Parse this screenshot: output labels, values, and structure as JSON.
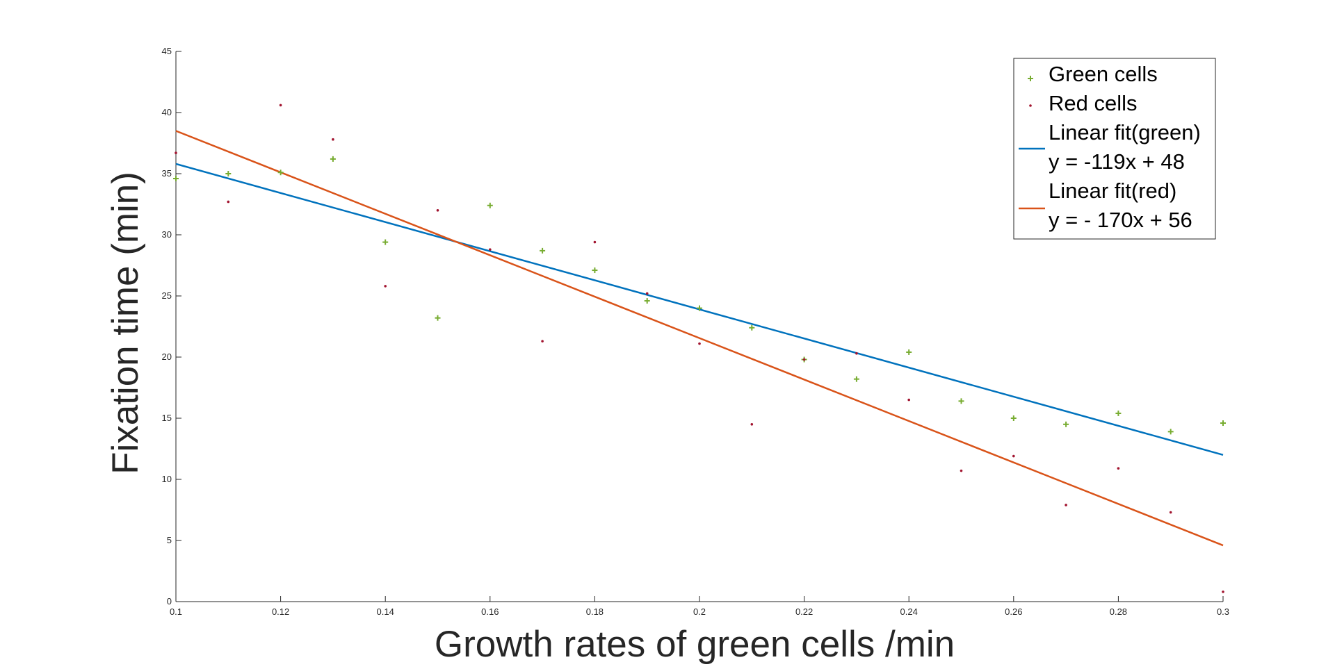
{
  "chart_data": {
    "type": "scatter",
    "title": "",
    "xlabel": "Growth rates of green cells /min",
    "ylabel": "Fixation time (min)",
    "xlim": [
      0.1,
      0.3
    ],
    "ylim": [
      0,
      45
    ],
    "x_ticks": [
      0.1,
      0.12,
      0.14,
      0.16,
      0.18,
      0.2,
      0.22,
      0.24,
      0.26,
      0.28,
      0.3
    ],
    "y_ticks": [
      0,
      5,
      10,
      15,
      20,
      25,
      30,
      35,
      40,
      45
    ],
    "x_tick_labels": [
      "0.1",
      "0.12",
      "0.14",
      "0.16",
      "0.18",
      "0.2",
      "0.22",
      "0.24",
      "0.26",
      "0.28",
      "0.3"
    ],
    "y_tick_labels": [
      "0",
      "5",
      "10",
      "15",
      "20",
      "25",
      "30",
      "35",
      "40",
      "45"
    ],
    "grid": false,
    "legend_position": "top-right",
    "x": [
      0.1,
      0.11,
      0.12,
      0.13,
      0.14,
      0.15,
      0.16,
      0.17,
      0.18,
      0.19,
      0.2,
      0.21,
      0.22,
      0.23,
      0.24,
      0.25,
      0.26,
      0.27,
      0.28,
      0.29,
      0.3
    ],
    "series": [
      {
        "name": "Green cells",
        "kind": "scatter",
        "marker": "+",
        "color": "#77ac30",
        "values": [
          34.6,
          35.0,
          35.1,
          36.2,
          29.4,
          23.2,
          32.4,
          28.7,
          27.1,
          24.6,
          24.0,
          22.4,
          19.8,
          18.2,
          20.4,
          16.4,
          15.0,
          14.5,
          15.4,
          13.9,
          14.6
        ]
      },
      {
        "name": "Red cells",
        "kind": "scatter",
        "marker": ".",
        "color": "#a2142f",
        "values": [
          36.7,
          32.7,
          40.6,
          37.8,
          25.8,
          32.0,
          28.8,
          21.3,
          29.4,
          25.2,
          21.1,
          14.5,
          19.8,
          20.3,
          16.5,
          10.7,
          11.9,
          7.9,
          10.9,
          7.3,
          0.8
        ]
      },
      {
        "name": "Linear fit(green)",
        "equation": "y = -119x + 48",
        "kind": "line",
        "color": "#0072bd",
        "x": [
          0.1,
          0.3
        ],
        "values": [
          35.8,
          12.0
        ]
      },
      {
        "name": "Linear fit(red)",
        "equation": "y = - 170x + 56",
        "kind": "line",
        "color": "#d95319",
        "x": [
          0.1,
          0.3
        ],
        "values": [
          38.5,
          4.6
        ]
      }
    ]
  }
}
